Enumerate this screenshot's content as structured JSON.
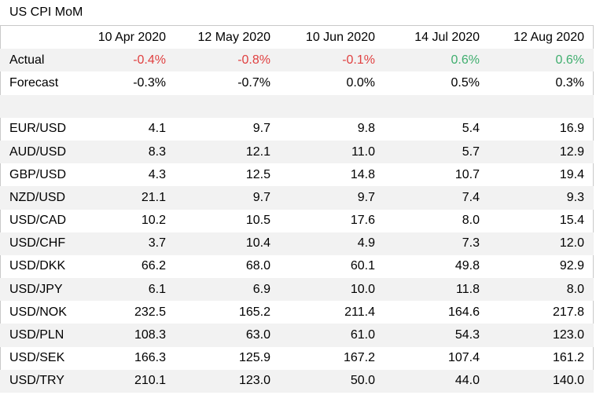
{
  "title": "US CPI MoM",
  "colors": {
    "negative": "#e04040",
    "positive": "#3fae6e",
    "row_shade": "#f2f2f2"
  },
  "chart_data": {
    "type": "table",
    "title": "US CPI MoM",
    "columns": [
      "10 Apr 2020",
      "12 May 2020",
      "10 Jun 2020",
      "14 Jul 2020",
      "12 Aug 2020"
    ],
    "cpi_rows": [
      {
        "label": "Actual",
        "values": [
          "-0.4%",
          "-0.8%",
          "-0.1%",
          "0.6%",
          "0.6%"
        ],
        "signs": [
          "neg",
          "neg",
          "neg",
          "pos",
          "pos"
        ]
      },
      {
        "label": "Forecast",
        "values": [
          "-0.3%",
          "-0.7%",
          "0.0%",
          "0.5%",
          "0.3%"
        ]
      }
    ],
    "pair_rows": [
      {
        "label": "EUR/USD",
        "values": [
          "4.1",
          "9.7",
          "9.8",
          "5.4",
          "16.9"
        ]
      },
      {
        "label": "AUD/USD",
        "values": [
          "8.3",
          "12.1",
          "11.0",
          "5.7",
          "12.9"
        ]
      },
      {
        "label": "GBP/USD",
        "values": [
          "4.3",
          "12.5",
          "14.8",
          "10.7",
          "19.4"
        ]
      },
      {
        "label": "NZD/USD",
        "values": [
          "21.1",
          "9.7",
          "9.7",
          "7.4",
          "9.3"
        ]
      },
      {
        "label": "USD/CAD",
        "values": [
          "10.2",
          "10.5",
          "17.6",
          "8.0",
          "15.4"
        ]
      },
      {
        "label": "USD/CHF",
        "values": [
          "3.7",
          "10.4",
          "4.9",
          "7.3",
          "12.0"
        ]
      },
      {
        "label": "USD/DKK",
        "values": [
          "66.2",
          "68.0",
          "60.1",
          "49.8",
          "92.9"
        ]
      },
      {
        "label": "USD/JPY",
        "values": [
          "6.1",
          "6.9",
          "10.0",
          "11.8",
          "8.0"
        ]
      },
      {
        "label": "USD/NOK",
        "values": [
          "232.5",
          "165.2",
          "211.4",
          "164.6",
          "217.8"
        ]
      },
      {
        "label": "USD/PLN",
        "values": [
          "108.3",
          "63.0",
          "61.0",
          "54.3",
          "123.0"
        ]
      },
      {
        "label": "USD/SEK",
        "values": [
          "166.3",
          "125.9",
          "167.2",
          "107.4",
          "161.2"
        ]
      },
      {
        "label": "USD/TRY",
        "values": [
          "210.1",
          "123.0",
          "50.0",
          "44.0",
          "140.0"
        ]
      }
    ]
  }
}
